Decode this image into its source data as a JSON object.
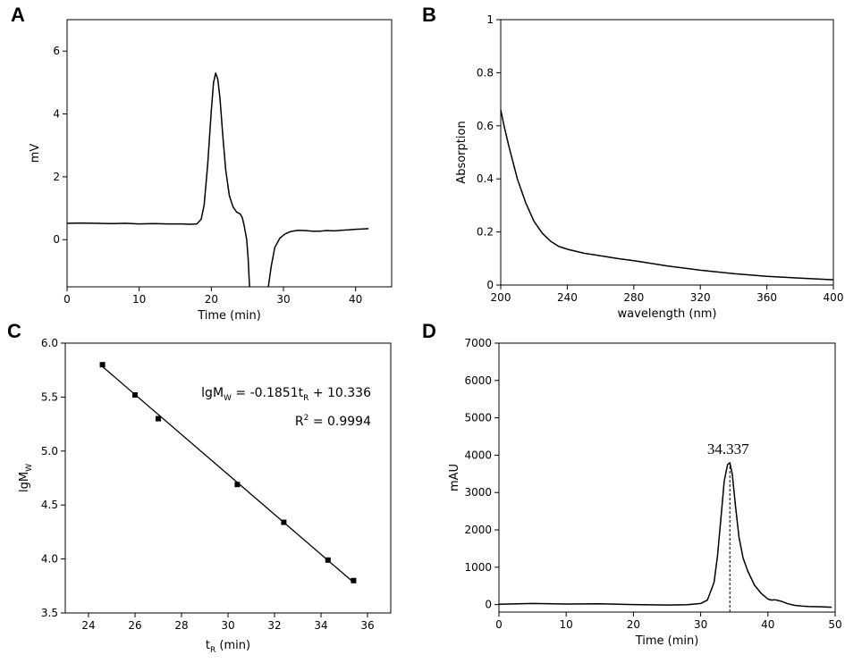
{
  "chart_data": [
    {
      "panel": "A",
      "type": "line",
      "title": "",
      "xlabel": "Time (min)",
      "ylabel": "mV",
      "xlim": [
        0,
        45
      ],
      "ylim": [
        -1.5,
        7
      ],
      "xticks": [
        0,
        10,
        20,
        30,
        40
      ],
      "yticks": [
        0,
        2,
        4,
        6
      ],
      "grid": false,
      "series": [
        {
          "x": [
            0,
            2,
            4,
            6,
            8,
            10,
            12,
            14,
            16,
            17,
            18,
            18.6,
            19,
            19.5,
            20,
            20.3,
            20.6,
            20.9,
            21.2,
            21.6,
            22,
            22.5,
            23,
            23.5,
            24,
            24.3,
            24.6,
            24.9,
            25.1,
            25.3
          ],
          "y": [
            0.52,
            0.53,
            0.52,
            0.51,
            0.52,
            0.5,
            0.51,
            0.5,
            0.5,
            0.49,
            0.5,
            0.65,
            1.1,
            2.4,
            4.1,
            5.0,
            5.3,
            5.1,
            4.5,
            3.3,
            2.2,
            1.4,
            1.05,
            0.88,
            0.82,
            0.7,
            0.4,
            0.0,
            -0.6,
            -1.5
          ]
        },
        {
          "x": [
            27.9,
            28.3,
            28.8,
            29.5,
            30.2,
            31,
            32,
            33,
            34,
            35,
            36,
            37,
            38,
            39,
            40,
            41,
            41.8
          ],
          "y": [
            -1.5,
            -0.85,
            -0.25,
            0.05,
            0.18,
            0.26,
            0.3,
            0.29,
            0.27,
            0.27,
            0.29,
            0.28,
            0.3,
            0.31,
            0.33,
            0.34,
            0.35
          ]
        }
      ]
    },
    {
      "panel": "B",
      "type": "line",
      "title": "",
      "xlabel": "wavelength (nm)",
      "ylabel": "Absorption",
      "xlim": [
        200,
        400
      ],
      "ylim": [
        0,
        1.0
      ],
      "xticks": [
        200,
        240,
        280,
        320,
        360,
        400
      ],
      "yticks": [
        0.0,
        0.2,
        0.4,
        0.6,
        0.8,
        1.0
      ],
      "grid": false,
      "series": [
        {
          "x": [
            200,
            202,
            205,
            210,
            215,
            220,
            225,
            230,
            235,
            240,
            250,
            260,
            270,
            280,
            290,
            300,
            320,
            340,
            360,
            380,
            400
          ],
          "y": [
            0.66,
            0.6,
            0.52,
            0.4,
            0.31,
            0.24,
            0.195,
            0.165,
            0.145,
            0.135,
            0.12,
            0.11,
            0.1,
            0.092,
            0.082,
            0.072,
            0.056,
            0.043,
            0.033,
            0.026,
            0.02
          ]
        }
      ]
    },
    {
      "panel": "C",
      "type": "scatter",
      "title": "",
      "xlabel": "t",
      "xlabel_sub": "R",
      "xlabel_suffix": " (min)",
      "ylabel": "lgM",
      "ylabel_sub": "W",
      "xlim": [
        23,
        37
      ],
      "ylim": [
        3.5,
        6.0
      ],
      "xticks": [
        24,
        26,
        28,
        30,
        32,
        34,
        36
      ],
      "yticks": [
        3.5,
        4.0,
        4.5,
        5.0,
        5.5,
        6.0
      ],
      "yticks_labels": [
        "3.5",
        "4.0",
        "4.5",
        "5.0",
        "5.5",
        "6.0"
      ],
      "grid": false,
      "points": {
        "x": [
          24.6,
          26.0,
          27.0,
          30.4,
          32.4,
          34.3,
          35.4
        ],
        "y": [
          5.8,
          5.52,
          5.3,
          4.69,
          4.34,
          3.99,
          3.8
        ]
      },
      "fit": {
        "slope": -0.1851,
        "intercept": 10.336,
        "x_range": [
          24.6,
          35.4
        ]
      },
      "equation": {
        "lhs": "lgM",
        "lhs_sub": "W",
        "mid": " = -0.1851t",
        "mid_sub": "R",
        "rhs": " + 10.336"
      },
      "r2": {
        "label": "R",
        "sup": "2",
        "value": " = 0.9994"
      }
    },
    {
      "panel": "D",
      "type": "line",
      "title": "",
      "xlabel": "Time (min)",
      "ylabel": "mAU",
      "xlim": [
        0,
        50
      ],
      "ylim": [
        -200,
        7000
      ],
      "xticks": [
        0,
        10,
        20,
        30,
        40,
        50
      ],
      "yticks": [
        0,
        1000,
        2000,
        3000,
        4000,
        5000,
        6000,
        7000
      ],
      "grid": false,
      "peak_label": "34.337",
      "peak_x": 34.337,
      "series": [
        {
          "x": [
            0,
            5,
            10,
            15,
            20,
            25,
            28,
            30,
            31,
            32,
            32.5,
            33,
            33.5,
            34,
            34.337,
            34.7,
            35.2,
            35.7,
            36.3,
            37,
            38,
            39,
            40,
            40.5,
            41,
            42,
            43,
            44,
            45,
            46,
            48,
            49.5
          ],
          "y": [
            10,
            30,
            15,
            20,
            0,
            -10,
            -5,
            30,
            120,
            600,
            1300,
            2300,
            3300,
            3750,
            3800,
            3500,
            2600,
            1800,
            1250,
            900,
            520,
            300,
            150,
            120,
            130,
            90,
            20,
            -20,
            -40,
            -50,
            -60,
            -70
          ]
        }
      ]
    }
  ]
}
